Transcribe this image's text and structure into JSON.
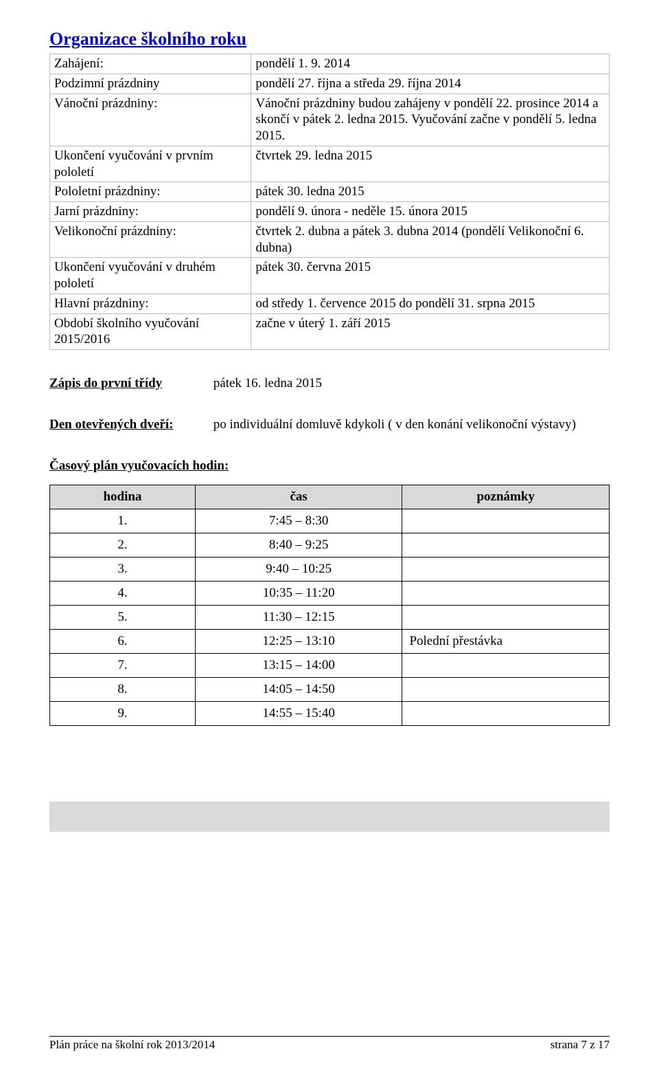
{
  "title": "Organizace školního roku",
  "org_rows": [
    {
      "label": "Zahájení:",
      "value": "pondělí 1. 9. 2014"
    },
    {
      "label": "Podzimní prázdniny",
      "value": "pondělí 27. října a středa 29. října 2014"
    },
    {
      "label": "Vánoční prázdniny:",
      "value": "Vánoční prázdniny budou zahájeny v pondělí 22. prosince 2014 a skončí v pátek 2. ledna 2015. Vyučování začne v pondělí 5. ledna 2015."
    },
    {
      "label": "Ukončení vyučování v prvním pololetí",
      "value": "čtvrtek 29. ledna 2015"
    },
    {
      "label": "Pololetní prázdniny:",
      "value": "pátek 30. ledna 2015"
    },
    {
      "label": "Jarní prázdniny:",
      "value": "pondělí 9. února - neděle 15. února 2015"
    },
    {
      "label": "Velikonoční prázdniny:",
      "value": "čtvrtek 2. dubna a pátek 3. dubna 2014 (pondělí Velikonoční 6. dubna)"
    },
    {
      "label": "Ukončení vyučování v druhém pololetí",
      "value": "pátek 30. června 2015"
    },
    {
      "label": "Hlavní prázdniny:",
      "value": "od středy 1. července 2015 do pondělí 31. srpna 2015"
    },
    {
      "label": "Období školního vyučování 2015/2016",
      "value": "začne v úterý 1. září 2015"
    }
  ],
  "zapis": {
    "label": "Zápis do první třídy",
    "value": "pátek 16. ledna 2015"
  },
  "otevrene_dveri": {
    "label": "Den otevřených dveří:",
    "value": "po individuální domluvě kdykoli ( v den konání velikonoční výstavy)"
  },
  "hours_heading": "Časový plán vyučovacích hodin:",
  "hours_headers": [
    "hodina",
    "čas",
    "poznámky"
  ],
  "hours_rows": [
    {
      "num": "1.",
      "time": "7:45 – 8:30",
      "note": ""
    },
    {
      "num": "2.",
      "time": "8:40 – 9:25",
      "note": ""
    },
    {
      "num": "3.",
      "time": "9:40 – 10:25",
      "note": ""
    },
    {
      "num": "4.",
      "time": "10:35 – 11:20",
      "note": ""
    },
    {
      "num": "5.",
      "time": "11:30 – 12:15",
      "note": ""
    },
    {
      "num": "6.",
      "time": "12:25 – 13:10",
      "note": "Polední přestávka"
    },
    {
      "num": "7.",
      "time": "13:15 – 14:00",
      "note": ""
    },
    {
      "num": "8.",
      "time": "14:05 – 14:50",
      "note": ""
    },
    {
      "num": "9.",
      "time": "14:55 – 15:40",
      "note": ""
    }
  ],
  "footer": {
    "left": "Plán práce na školní rok 2013/2014",
    "right": "strana  7 z 17"
  }
}
